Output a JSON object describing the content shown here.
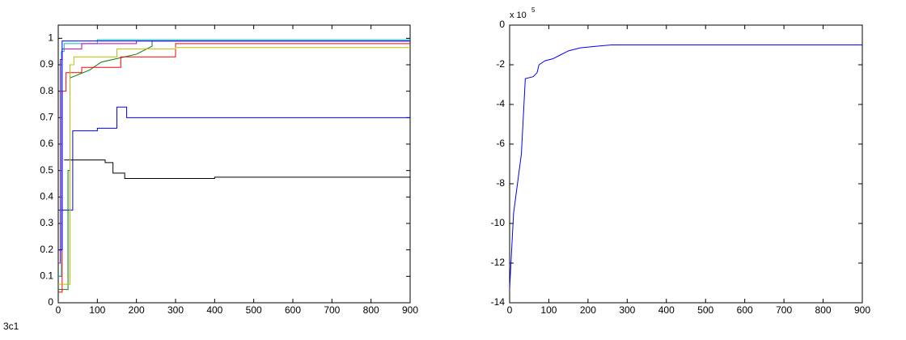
{
  "caption": "3c1",
  "chart_data": [
    {
      "type": "line",
      "xlim": [
        0,
        900
      ],
      "ylim": [
        0,
        1.05
      ],
      "xticks": [
        0,
        100,
        200,
        300,
        400,
        500,
        600,
        700,
        800,
        900
      ],
      "yticks": [
        0,
        0.1,
        0.2,
        0.3,
        0.4,
        0.5,
        0.6,
        0.7,
        0.8,
        0.9,
        1
      ],
      "series": [
        {
          "color": "#0000ff",
          "x": [
            0,
            37,
            37,
            100,
            100,
            150,
            150,
            175,
            175,
            900
          ],
          "values": [
            0.35,
            0.35,
            0.65,
            0.65,
            0.66,
            0.66,
            0.74,
            0.74,
            0.7,
            0.7
          ]
        },
        {
          "color": "#000000",
          "x": [
            15,
            120,
            120,
            140,
            140,
            170,
            170,
            400,
            400,
            900
          ],
          "values": [
            0.54,
            0.54,
            0.53,
            0.53,
            0.49,
            0.49,
            0.47,
            0.47,
            0.475,
            0.475
          ]
        },
        {
          "color": "#008000",
          "x": [
            0,
            25,
            25,
            30,
            30,
            80,
            80,
            110,
            110,
            200,
            200,
            240,
            240,
            900
          ],
          "values": [
            0.05,
            0.05,
            0.5,
            0.5,
            0.85,
            0.88,
            0.88,
            0.91,
            0.91,
            0.94,
            0.94,
            0.97,
            0.99,
            0.99
          ]
        },
        {
          "color": "#ff0000",
          "x": [
            0,
            10,
            10,
            20,
            20,
            60,
            60,
            160,
            160,
            300,
            300,
            900
          ],
          "values": [
            0.04,
            0.04,
            0.8,
            0.8,
            0.87,
            0.87,
            0.89,
            0.89,
            0.93,
            0.93,
            0.98,
            0.98
          ]
        },
        {
          "color": "#bfbf00",
          "x": [
            0,
            30,
            30,
            40,
            40,
            150,
            150,
            300,
            300,
            900
          ],
          "values": [
            0.07,
            0.07,
            0.9,
            0.9,
            0.93,
            0.93,
            0.96,
            0.96,
            0.965,
            0.965
          ]
        },
        {
          "color": "#00bfbf",
          "x": [
            0,
            8,
            8,
            15,
            15,
            100,
            100,
            900
          ],
          "values": [
            0.1,
            0.1,
            0.95,
            0.95,
            0.98,
            0.98,
            0.995,
            0.995
          ]
        },
        {
          "color": "#bf00bf",
          "x": [
            0,
            5,
            5,
            10,
            10,
            60,
            60,
            200,
            200,
            900
          ],
          "values": [
            0.15,
            0.15,
            0.92,
            0.92,
            0.96,
            0.96,
            0.98,
            0.98,
            0.99,
            0.99
          ]
        },
        {
          "color": "#0000ff",
          "x": [
            0,
            10,
            10,
            900
          ],
          "values": [
            0.2,
            0.2,
            0.99,
            0.99
          ]
        }
      ]
    },
    {
      "type": "line",
      "xlim": [
        0,
        900
      ],
      "ylim": [
        -14,
        0
      ],
      "xticks": [
        0,
        100,
        200,
        300,
        400,
        500,
        600,
        700,
        800,
        900
      ],
      "yticks": [
        -14,
        -12,
        -10,
        -8,
        -6,
        -4,
        -2,
        0
      ],
      "y_multiplier": {
        "base": "x 10",
        "exponent": "5"
      },
      "series": [
        {
          "color": "#0000ff",
          "x": [
            0,
            10,
            20,
            30,
            40,
            60,
            70,
            75,
            90,
            110,
            130,
            150,
            180,
            230,
            260,
            900
          ],
          "values": [
            -13.3,
            -9.5,
            -8,
            -6.5,
            -2.7,
            -2.6,
            -2.4,
            -2,
            -1.8,
            -1.7,
            -1.5,
            -1.3,
            -1.15,
            -1.05,
            -1,
            -1
          ]
        }
      ]
    }
  ]
}
